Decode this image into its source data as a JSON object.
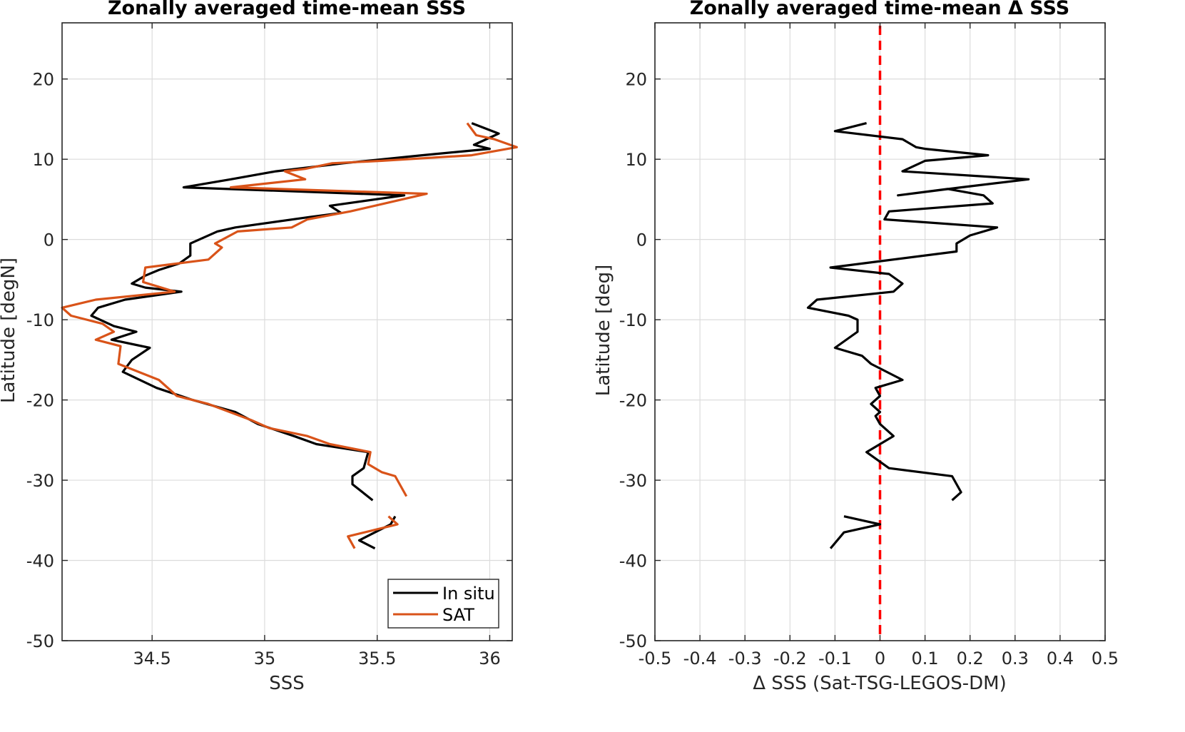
{
  "chart_data": [
    {
      "type": "line",
      "title": "Zonally averaged time-mean SSS",
      "xlabel": "SSS",
      "ylabel": "Latitude [degN]",
      "xlim": [
        34.1,
        36.1
      ],
      "ylim": [
        -50,
        27
      ],
      "xticks": [
        34.5,
        35,
        35.5,
        36
      ],
      "xtick_labels": [
        "34.5",
        "35",
        "35.5",
        "36"
      ],
      "yticks": [
        -50,
        -40,
        -30,
        -20,
        -10,
        0,
        10,
        20
      ],
      "ytick_labels": [
        "-50",
        "-40",
        "-30",
        "-20",
        "-10",
        "0",
        "10",
        "20"
      ],
      "grid": true,
      "legend": {
        "placement": "bottom-right",
        "entries": [
          "In situ",
          "SAT"
        ]
      },
      "series": [
        {
          "name": "In situ",
          "color": "#000000",
          "segments": [
            [
              [
                35.92,
                14.5
              ],
              [
                36.04,
                13.2
              ],
              [
                35.93,
                11.8
              ],
              [
                36.0,
                11.3
              ],
              [
                35.7,
                10.5
              ],
              [
                35.35,
                9.5
              ],
              [
                35.05,
                8.5
              ],
              [
                34.85,
                7.5
              ],
              [
                34.64,
                6.5
              ],
              [
                35.62,
                5.5
              ],
              [
                35.29,
                4.2
              ],
              [
                35.34,
                3.3
              ],
              [
                35.2,
                2.8
              ],
              [
                34.87,
                1.5
              ],
              [
                34.79,
                1.0
              ],
              [
                34.67,
                -0.5
              ],
              [
                34.67,
                -2.0
              ],
              [
                34.62,
                -3.0
              ],
              [
                34.53,
                -3.8
              ],
              [
                34.47,
                -4.5
              ],
              [
                34.41,
                -5.5
              ],
              [
                34.47,
                -6.0
              ],
              [
                34.63,
                -6.5
              ],
              [
                34.38,
                -7.5
              ],
              [
                34.26,
                -8.5
              ],
              [
                34.23,
                -9.5
              ],
              [
                34.33,
                -10.8
              ],
              [
                34.43,
                -11.5
              ],
              [
                34.32,
                -12.5
              ],
              [
                34.49,
                -13.5
              ],
              [
                34.41,
                -15.0
              ],
              [
                34.37,
                -16.5
              ],
              [
                34.52,
                -18.5
              ],
              [
                34.68,
                -20.0
              ],
              [
                34.87,
                -21.5
              ],
              [
                34.97,
                -23.0
              ],
              [
                35.13,
                -24.5
              ],
              [
                35.23,
                -25.5
              ],
              [
                35.46,
                -26.5
              ],
              [
                35.44,
                -28.5
              ],
              [
                35.39,
                -29.5
              ],
              [
                35.39,
                -30.5
              ],
              [
                35.48,
                -32.5
              ]
            ],
            [
              [
                35.58,
                -34.5
              ],
              [
                35.56,
                -35.5
              ],
              [
                35.42,
                -37.5
              ],
              [
                35.49,
                -38.5
              ]
            ]
          ]
        },
        {
          "name": "SAT",
          "color": "#D95319",
          "segments": [
            [
              [
                35.9,
                14.5
              ],
              [
                35.94,
                13.0
              ],
              [
                36.02,
                12.5
              ],
              [
                36.12,
                11.5
              ],
              [
                35.92,
                10.5
              ],
              [
                35.52,
                9.8
              ],
              [
                35.3,
                9.5
              ],
              [
                35.18,
                8.8
              ],
              [
                35.09,
                8.5
              ],
              [
                35.18,
                7.5
              ],
              [
                34.85,
                6.5
              ],
              [
                35.72,
                5.7
              ],
              [
                35.38,
                3.5
              ],
              [
                35.19,
                2.5
              ],
              [
                35.12,
                1.5
              ],
              [
                34.88,
                1.0
              ],
              [
                34.78,
                -0.5
              ],
              [
                34.81,
                -1.0
              ],
              [
                34.75,
                -2.5
              ],
              [
                34.47,
                -3.5
              ],
              [
                34.46,
                -5.3
              ],
              [
                34.6,
                -6.5
              ],
              [
                34.25,
                -7.5
              ],
              [
                34.1,
                -8.5
              ],
              [
                34.14,
                -9.5
              ],
              [
                34.28,
                -10.5
              ],
              [
                34.33,
                -11.5
              ],
              [
                34.25,
                -12.5
              ],
              [
                34.36,
                -13.3
              ],
              [
                34.35,
                -15.5
              ],
              [
                34.53,
                -17.5
              ],
              [
                34.61,
                -19.5
              ],
              [
                34.75,
                -20.5
              ],
              [
                34.94,
                -22.5
              ],
              [
                35.02,
                -23.5
              ],
              [
                35.19,
                -24.5
              ],
              [
                35.29,
                -25.5
              ],
              [
                35.47,
                -26.5
              ],
              [
                35.46,
                -28.0
              ],
              [
                35.52,
                -29.0
              ],
              [
                35.58,
                -29.5
              ],
              [
                35.63,
                -32.0
              ]
            ],
            [
              [
                35.55,
                -34.5
              ],
              [
                35.59,
                -35.5
              ],
              [
                35.37,
                -37.0
              ],
              [
                35.4,
                -38.5
              ]
            ]
          ]
        }
      ]
    },
    {
      "type": "line",
      "title": "Zonally averaged time-mean Δ SSS",
      "xlabel": "Δ SSS (Sat-TSG-LEGOS-DM)",
      "ylabel": "Latitude [deg]",
      "xlim": [
        -0.5,
        0.5
      ],
      "ylim": [
        -50,
        27
      ],
      "xticks": [
        -0.5,
        -0.4,
        -0.3,
        -0.2,
        -0.1,
        0,
        0.1,
        0.2,
        0.3,
        0.4,
        0.5
      ],
      "xtick_labels": [
        "-0.5",
        "-0.4",
        "-0.3",
        "-0.2",
        "-0.1",
        "0",
        "0.1",
        "0.2",
        "0.3",
        "0.4",
        "0.5"
      ],
      "yticks": [
        -50,
        -40,
        -30,
        -20,
        -10,
        0,
        10,
        20
      ],
      "ytick_labels": [
        "-50",
        "-40",
        "-30",
        "-20",
        "-10",
        "0",
        "10",
        "20"
      ],
      "grid": true,
      "reference_line": {
        "x": 0,
        "color": "#FF0000",
        "style": "dashed"
      },
      "series": [
        {
          "color": "#000000",
          "segments": [
            [
              [
                -0.03,
                14.5
              ],
              [
                -0.1,
                13.5
              ],
              [
                0.05,
                12.5
              ],
              [
                0.08,
                11.5
              ],
              [
                0.1,
                11.3
              ],
              [
                0.24,
                10.5
              ],
              [
                0.1,
                9.8
              ],
              [
                0.05,
                8.5
              ],
              [
                0.33,
                7.5
              ],
              [
                0.18,
                6.5
              ],
              [
                0.04,
                5.5
              ],
              [
                0.15,
                6.3
              ],
              [
                0.23,
                5.5
              ],
              [
                0.25,
                4.5
              ],
              [
                0.02,
                3.5
              ],
              [
                0.01,
                2.5
              ],
              [
                0.26,
                1.5
              ],
              [
                0.2,
                0.5
              ],
              [
                0.17,
                -0.5
              ],
              [
                0.17,
                -1.5
              ],
              [
                -0.11,
                -3.5
              ],
              [
                0.02,
                -4.3
              ],
              [
                0.05,
                -5.5
              ],
              [
                0.03,
                -6.5
              ],
              [
                -0.14,
                -7.5
              ],
              [
                -0.16,
                -8.5
              ],
              [
                -0.07,
                -9.5
              ],
              [
                -0.05,
                -10.0
              ],
              [
                -0.05,
                -11.5
              ],
              [
                -0.1,
                -13.5
              ],
              [
                -0.04,
                -14.5
              ],
              [
                -0.02,
                -15.5
              ],
              [
                0.05,
                -17.5
              ],
              [
                -0.01,
                -18.5
              ],
              [
                0.0,
                -19.5
              ],
              [
                -0.02,
                -20.5
              ],
              [
                0.0,
                -21.5
              ],
              [
                -0.01,
                -22.0
              ],
              [
                0.0,
                -23.0
              ],
              [
                0.03,
                -24.5
              ],
              [
                0.0,
                -25.5
              ],
              [
                -0.03,
                -26.5
              ],
              [
                0.02,
                -28.5
              ],
              [
                0.16,
                -29.5
              ],
              [
                0.18,
                -31.5
              ],
              [
                0.16,
                -32.5
              ]
            ],
            [
              [
                -0.08,
                -34.5
              ],
              [
                0.0,
                -35.5
              ],
              [
                -0.08,
                -36.5
              ],
              [
                -0.11,
                -38.5
              ]
            ]
          ]
        }
      ]
    }
  ]
}
